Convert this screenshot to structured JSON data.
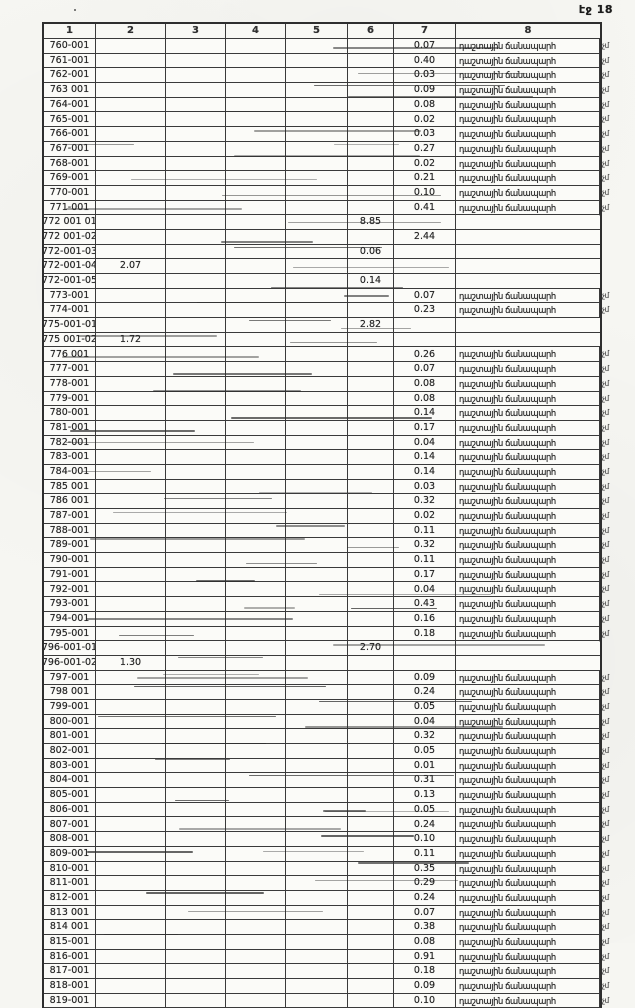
{
  "page_label": "էջ 18",
  "table": {
    "headers": [
      "1",
      "2",
      "3",
      "4",
      "5",
      "6",
      "7",
      "8"
    ],
    "road_label": "դաշտային ճանապարհ",
    "note": "չմ",
    "rows": [
      {
        "id": "760-001",
        "c7": "0.07",
        "road": true
      },
      {
        "id": "761-001",
        "c7": "0.40",
        "road": true
      },
      {
        "id": "762-001",
        "c7": "0.03",
        "road": true
      },
      {
        "id": "763 001",
        "c7": "0.09",
        "road": true
      },
      {
        "id": "764-001",
        "c7": "0.08",
        "road": true
      },
      {
        "id": "765-001",
        "c7": "0.02",
        "road": true
      },
      {
        "id": "766-001",
        "c7": "0.03",
        "road": true
      },
      {
        "id": "767-001",
        "c7": "0.27",
        "road": true
      },
      {
        "id": "768-001",
        "c7": "0.02",
        "road": true
      },
      {
        "id": "769-001",
        "c7": "0.21",
        "road": true
      },
      {
        "id": "770-001",
        "c7": "0.10",
        "road": true
      },
      {
        "id": "771-001",
        "c7": "0.41",
        "road": true
      },
      {
        "id": "772 001 01",
        "c6": "8.85",
        "road": false
      },
      {
        "id": "772 001-02",
        "c7": "2.44",
        "road": false
      },
      {
        "id": "772-001-03",
        "c6": "0.06",
        "road": false
      },
      {
        "id": "772-001-04",
        "c2": "2.07",
        "road": false
      },
      {
        "id": "772-001-05",
        "c6": "0.14",
        "road": false
      },
      {
        "id": "773-001",
        "c7": "0.07",
        "road": true
      },
      {
        "id": "774-001",
        "c7": "0.23",
        "road": true
      },
      {
        "id": "775-001-01",
        "c6": "2.82",
        "road": false
      },
      {
        "id": "775 001-02",
        "c2": "1.72",
        "road": false
      },
      {
        "id": "776 001",
        "c7": "0.26",
        "road": true
      },
      {
        "id": "777-001",
        "c7": "0.07",
        "road": true
      },
      {
        "id": "778-001",
        "c7": "0.08",
        "road": true
      },
      {
        "id": "779-001",
        "c7": "0.08",
        "road": true
      },
      {
        "id": "780-001",
        "c7": "0.14",
        "road": true
      },
      {
        "id": "781-001",
        "c7": "0.17",
        "road": true
      },
      {
        "id": "782-001",
        "c7": "0.04",
        "road": true
      },
      {
        "id": "783-001",
        "c7": "0.14",
        "road": true
      },
      {
        "id": "784-001",
        "c7": "0.14",
        "road": true
      },
      {
        "id": "785 001",
        "c7": "0.03",
        "road": true
      },
      {
        "id": "786 001",
        "c7": "0.32",
        "road": true
      },
      {
        "id": "787-001",
        "c7": "0.02",
        "road": true
      },
      {
        "id": "788-001",
        "c7": "0.11",
        "road": true
      },
      {
        "id": "789-001",
        "c7": "0.32",
        "road": true
      },
      {
        "id": "790-001",
        "c7": "0.11",
        "road": true
      },
      {
        "id": "791-001",
        "c7": "0.17",
        "road": true
      },
      {
        "id": "792-001",
        "c7": "0.04",
        "road": true
      },
      {
        "id": "793-001",
        "c7": "0.43",
        "road": true
      },
      {
        "id": "794-001",
        "c7": "0.16",
        "road": true
      },
      {
        "id": "795-001",
        "c7": "0.18",
        "road": true
      },
      {
        "id": "796-001-01",
        "c6": "2.70",
        "road": false
      },
      {
        "id": "796-001-02",
        "c2": "1.30",
        "road": false
      },
      {
        "id": "797-001",
        "c7": "0.09",
        "road": true
      },
      {
        "id": "798 001",
        "c7": "0.24",
        "road": true
      },
      {
        "id": "799-001",
        "c7": "0.05",
        "road": true
      },
      {
        "id": "800-001",
        "c7": "0.04",
        "road": true
      },
      {
        "id": "801-001",
        "c7": "0.32",
        "road": true
      },
      {
        "id": "802-001",
        "c7": "0.05",
        "road": true
      },
      {
        "id": "803-001",
        "c7": "0.01",
        "road": true
      },
      {
        "id": "804-001",
        "c7": "0.31",
        "road": true
      },
      {
        "id": "805-001",
        "c7": "0.13",
        "road": true
      },
      {
        "id": "806-001",
        "c7": "0.05",
        "road": true
      },
      {
        "id": "807-001",
        "c7": "0.24",
        "road": true
      },
      {
        "id": "808-001",
        "c7": "0.10",
        "road": true
      },
      {
        "id": "809-001",
        "c7": "0.11",
        "road": true
      },
      {
        "id": "810-001",
        "c7": "0.35",
        "road": true
      },
      {
        "id": "811-001",
        "c7": "0.29",
        "road": true
      },
      {
        "id": "812-001",
        "c7": "0.24",
        "road": true
      },
      {
        "id": "813 001",
        "c7": "0.07",
        "road": true
      },
      {
        "id": "814 001",
        "c7": "0.38",
        "road": true
      },
      {
        "id": "815-001",
        "c7": "0.08",
        "road": true
      },
      {
        "id": "816-001",
        "c7": "0.91",
        "road": true
      },
      {
        "id": "817-001",
        "c7": "0.18",
        "road": true
      },
      {
        "id": "818-001",
        "c7": "0.09",
        "road": true
      },
      {
        "id": "819-001",
        "c7": "0.10",
        "road": true
      }
    ]
  }
}
